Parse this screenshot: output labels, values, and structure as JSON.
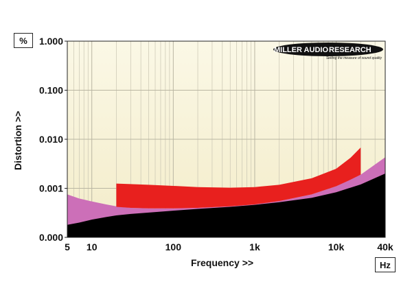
{
  "chart_data": {
    "type": "area",
    "xlabel": "Frequency >>",
    "ylabel": "Distortion >>",
    "y_unit": "%",
    "x_unit": "Hz",
    "x_scale": "log",
    "y_scale": "log",
    "xlim": [
      5,
      40000
    ],
    "ylim": [
      0.0001,
      1
    ],
    "x_ticks": [
      {
        "value": 5,
        "label": "5"
      },
      {
        "value": 10,
        "label": "10"
      },
      {
        "value": 100,
        "label": "100"
      },
      {
        "value": 1000,
        "label": "1k"
      },
      {
        "value": 10000,
        "label": "10k"
      },
      {
        "value": 40000,
        "label": "40k"
      }
    ],
    "y_ticks": [
      {
        "value": 0.0001,
        "label": "0.000"
      },
      {
        "value": 0.001,
        "label": "0.001"
      },
      {
        "value": 0.01,
        "label": "0.010"
      },
      {
        "value": 0.1,
        "label": "0.100"
      },
      {
        "value": 1,
        "label": "1.000"
      }
    ],
    "grid": true,
    "series": [
      {
        "color": "#cc6fb8",
        "x": [
          5,
          7,
          10,
          15,
          20,
          30,
          50,
          100,
          200,
          500,
          1000,
          2000,
          5000,
          10000,
          20000,
          40000
        ],
        "y": [
          0.00075,
          0.00062,
          0.00054,
          0.00047,
          0.00043,
          0.0004,
          0.00039,
          0.00039,
          0.0004,
          0.00043,
          0.00047,
          0.00055,
          0.00075,
          0.0011,
          0.0019,
          0.0043
        ]
      },
      {
        "color": "#e8201e",
        "x": [
          20,
          30,
          50,
          100,
          200,
          500,
          1000,
          2000,
          5000,
          10000,
          15000,
          20000
        ],
        "y": [
          0.00125,
          0.00122,
          0.00118,
          0.00112,
          0.00106,
          0.00103,
          0.00106,
          0.00118,
          0.0016,
          0.0025,
          0.0042,
          0.0068
        ]
      },
      {
        "color": "#000000",
        "x": [
          5,
          7,
          10,
          15,
          20,
          30,
          50,
          100,
          200,
          500,
          1000,
          2000,
          5000,
          10000,
          20000,
          40000
        ],
        "y": [
          0.00018,
          0.0002,
          0.00023,
          0.00026,
          0.00028,
          0.0003,
          0.00032,
          0.00035,
          0.00038,
          0.00042,
          0.00046,
          0.00052,
          0.00064,
          0.00083,
          0.0012,
          0.002
        ]
      }
    ],
    "red_band_lower": {
      "x": [
        20,
        30,
        50,
        100,
        200,
        500,
        1000,
        2000,
        5000,
        10000,
        15000,
        20000
      ],
      "y": [
        0.00042,
        0.0004,
        0.00039,
        0.00039,
        0.0004,
        0.00043,
        0.00047,
        0.00055,
        0.00075,
        0.0011,
        0.0015,
        0.0019
      ]
    }
  },
  "logo": {
    "brand_left": "MILLER AUDIO",
    "brand_right": "RESEARCH",
    "tagline": "Setting the measure of sound quality"
  },
  "colors": {
    "plot_bg_top": "#fbf8e6",
    "plot_bg_bottom": "#f3ecc9",
    "grid": "#c9c5b2",
    "pink": "#cc6fb8",
    "red": "#e8201e",
    "black": "#000000"
  }
}
